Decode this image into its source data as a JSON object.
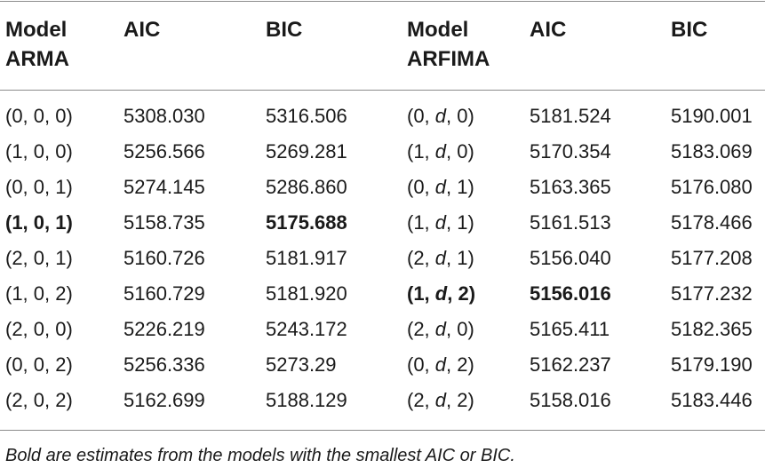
{
  "table": {
    "headers": [
      "Model\nARMA",
      "AIC",
      "BIC",
      "Model\nARFIMA",
      "AIC",
      "BIC"
    ],
    "rows": [
      {
        "arma": "(0, 0, 0)",
        "arma_aic": "5308.030",
        "arma_bic": "5316.506",
        "arfima_pre": "(0, ",
        "arfima_d": "d",
        "arfima_post": ", 0)",
        "arfima_aic": "5181.524",
        "arfima_bic": "5190.001"
      },
      {
        "arma": "(1, 0, 0)",
        "arma_aic": "5256.566",
        "arma_bic": "5269.281",
        "arfima_pre": "(1, ",
        "arfima_d": "d",
        "arfima_post": ", 0)",
        "arfima_aic": "5170.354",
        "arfima_bic": "5183.069"
      },
      {
        "arma": "(0, 0, 1)",
        "arma_aic": "5274.145",
        "arma_bic": "5286.860",
        "arfima_pre": "(0, ",
        "arfima_d": "d",
        "arfima_post": ", 1)",
        "arfima_aic": "5163.365",
        "arfima_bic": "5176.080"
      },
      {
        "arma": "(1, 0, 1)",
        "arma_aic": "5158.735",
        "arma_bic": "5175.688",
        "arfima_pre": "(1, ",
        "arfima_d": "d",
        "arfima_post": ", 1)",
        "arfima_aic": "5161.513",
        "arfima_bic": "5178.466"
      },
      {
        "arma": "(2, 0, 1)",
        "arma_aic": "5160.726",
        "arma_bic": "5181.917",
        "arfima_pre": "(2, ",
        "arfima_d": "d",
        "arfima_post": ", 1)",
        "arfima_aic": "5156.040",
        "arfima_bic": "5177.208"
      },
      {
        "arma": "(1, 0, 2)",
        "arma_aic": "5160.729",
        "arma_bic": "5181.920",
        "arfima_pre": "(1, ",
        "arfima_d": "d",
        "arfima_post": ", 2)",
        "arfima_aic": "5156.016",
        "arfima_bic": "5177.232"
      },
      {
        "arma": "(2, 0, 0)",
        "arma_aic": "5226.219",
        "arma_bic": "5243.172",
        "arfima_pre": "(2, ",
        "arfima_d": "d",
        "arfima_post": ", 0)",
        "arfima_aic": "5165.411",
        "arfima_bic": "5182.365"
      },
      {
        "arma": "(0, 0, 2)",
        "arma_aic": "5256.336",
        "arma_bic": "5273.29",
        "arfima_pre": "(0, ",
        "arfima_d": "d",
        "arfima_post": ", 2)",
        "arfima_aic": "5162.237",
        "arfima_bic": "5179.190"
      },
      {
        "arma": "(2, 0, 2)",
        "arma_aic": "5162.699",
        "arma_bic": "5188.129",
        "arfima_pre": "(2, ",
        "arfima_d": "d",
        "arfima_post": ", 2)",
        "arfima_aic": "5158.016",
        "arfima_bic": "5183.446"
      }
    ],
    "bold_cells": {
      "arma_model_row": 3,
      "arma_bic_row": 3,
      "arfima_model_row": 5,
      "arfima_aic_row": 5
    },
    "footnote": "Bold are estimates from the models with the smallest AIC or BIC."
  }
}
